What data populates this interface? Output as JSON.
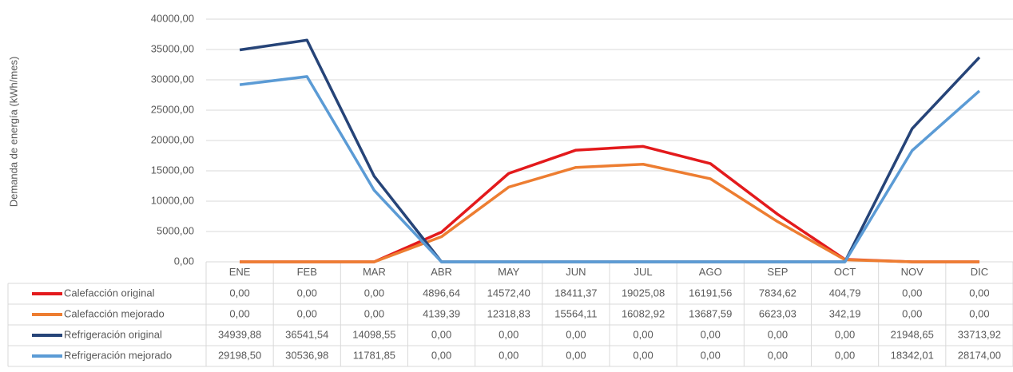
{
  "chart_data": {
    "type": "line",
    "y_label": "Demanda de energía (kWh/mes)",
    "categories": [
      "ENE",
      "FEB",
      "MAR",
      "ABR",
      "MAY",
      "JUN",
      "JUL",
      "AGO",
      "SEP",
      "OCT",
      "NOV",
      "DIC"
    ],
    "ylim": [
      0,
      40000
    ],
    "yticks": [
      {
        "value": 0,
        "label": "0,00"
      },
      {
        "value": 5000,
        "label": "5000,00"
      },
      {
        "value": 10000,
        "label": "10000,00"
      },
      {
        "value": 15000,
        "label": "15000,00"
      },
      {
        "value": 20000,
        "label": "20000,00"
      },
      {
        "value": 25000,
        "label": "25000,00"
      },
      {
        "value": 30000,
        "label": "30000,00"
      },
      {
        "value": 35000,
        "label": "35000,00"
      },
      {
        "value": 40000,
        "label": "40000,00"
      }
    ],
    "grid": true,
    "series": [
      {
        "name": "Calefacción original",
        "color": "#e31a1c",
        "values": [
          0,
          0,
          0,
          4896.64,
          14572.4,
          18411.37,
          19025.08,
          16191.56,
          7834.62,
          404.79,
          0,
          0
        ],
        "value_labels": [
          "0,00",
          "0,00",
          "0,00",
          "4896,64",
          "14572,40",
          "18411,37",
          "19025,08",
          "16191,56",
          "7834,62",
          "404,79",
          "0,00",
          "0,00"
        ]
      },
      {
        "name": "Calefacción mejorado",
        "color": "#ed7d31",
        "values": [
          0,
          0,
          0,
          4139.39,
          12318.83,
          15564.11,
          16082.92,
          13687.59,
          6623.03,
          342.19,
          0,
          0
        ],
        "value_labels": [
          "0,00",
          "0,00",
          "0,00",
          "4139,39",
          "12318,83",
          "15564,11",
          "16082,92",
          "13687,59",
          "6623,03",
          "342,19",
          "0,00",
          "0,00"
        ]
      },
      {
        "name": "Refrigeración original",
        "color": "#264478",
        "values": [
          34939.88,
          36541.54,
          14098.55,
          0,
          0,
          0,
          0,
          0,
          0,
          0,
          21948.65,
          33713.92
        ],
        "value_labels": [
          "34939,88",
          "36541,54",
          "14098,55",
          "0,00",
          "0,00",
          "0,00",
          "0,00",
          "0,00",
          "0,00",
          "0,00",
          "21948,65",
          "33713,92"
        ]
      },
      {
        "name": "Refrigeración mejorado",
        "color": "#5b9bd5",
        "values": [
          29198.5,
          30536.98,
          11781.85,
          0,
          0,
          0,
          0,
          0,
          0,
          0,
          18342.01,
          28174.0
        ],
        "value_labels": [
          "29198,50",
          "30536,98",
          "11781,85",
          "0,00",
          "0,00",
          "0,00",
          "0,00",
          "0,00",
          "0,00",
          "0,00",
          "18342,01",
          "28174,00"
        ]
      }
    ]
  }
}
